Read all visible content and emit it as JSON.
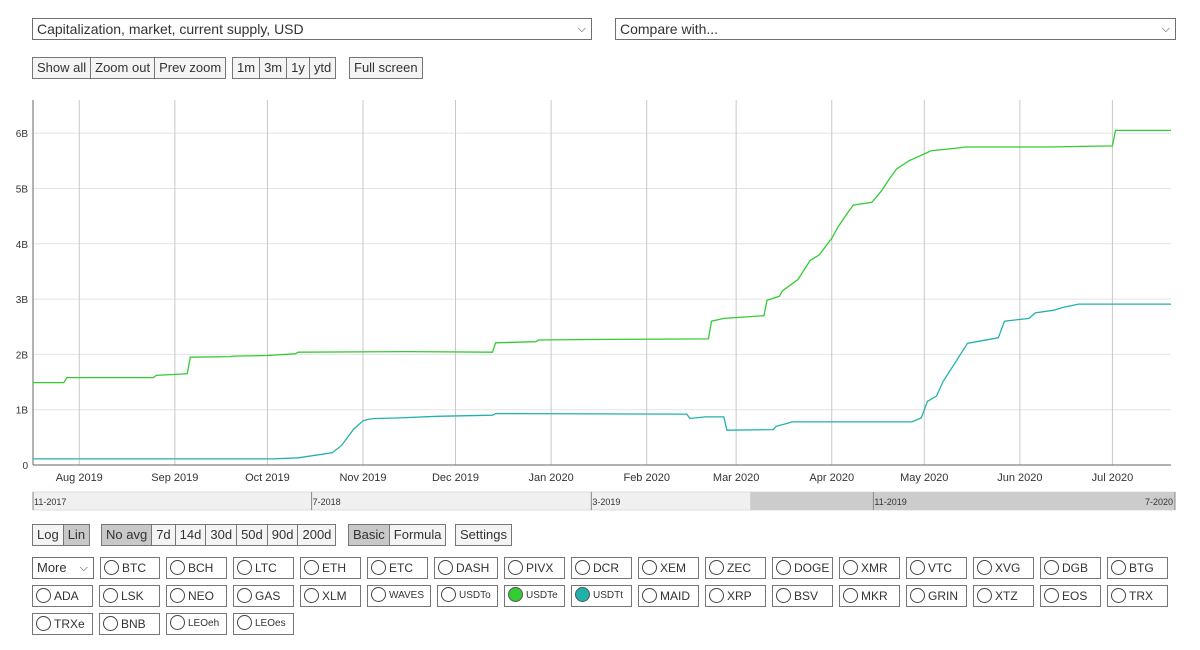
{
  "controls": {
    "metric_select": "Capitalization, market, current supply, USD",
    "compare_select": "Compare with...",
    "zoom_buttons": [
      "Show all",
      "Zoom out",
      "Prev zoom"
    ],
    "range_buttons": [
      "1m",
      "3m",
      "1y",
      "ytd"
    ],
    "fullscreen": "Full screen",
    "scale_buttons": [
      "Log",
      "Lin"
    ],
    "scale_active": "Lin",
    "avg_buttons": [
      "No avg",
      "7d",
      "14d",
      "30d",
      "50d",
      "90d",
      "200d"
    ],
    "avg_active": "No avg",
    "mode_buttons": [
      "Basic",
      "Formula"
    ],
    "mode_active": "Basic",
    "settings": "Settings",
    "more_select": "More"
  },
  "colors": {
    "usdte": "#33cc33",
    "usdtt": "#20b2aa",
    "grid": "#c8c8c8",
    "navigator_selection": "#cccccc"
  },
  "coins": [
    [
      "BTC",
      "BCH",
      "LTC",
      "ETH",
      "ETC",
      "DASH",
      "PIVX",
      "DCR",
      "XEM",
      "ZEC",
      "DOGE",
      "XMR",
      "VTC",
      "XVG",
      "DGB",
      "BTG"
    ],
    [
      "ADA",
      "LSK",
      "NEO",
      "GAS",
      "XLM",
      "WAVES",
      "USDTo",
      "USDTe",
      "USDTt",
      "MAID",
      "XRP",
      "BSV",
      "MKR",
      "GRIN",
      "XTZ",
      "EOS",
      "TRX"
    ],
    [
      "TRXe",
      "BNB",
      "LEOeh",
      "LEOes"
    ]
  ],
  "selected_coins": {
    "USDTe": "#33cc33",
    "USDTt": "#20b2aa"
  },
  "chart_data": {
    "type": "line",
    "ylabel": "",
    "y_ticks": [
      "0",
      "1B",
      "2B",
      "3B",
      "4B",
      "5B",
      "6B"
    ],
    "ylim": [
      0,
      6600000000
    ],
    "x_ticks": [
      "Aug 2019",
      "Sep 2019",
      "Oct 2019",
      "Nov 2019",
      "Dec 2019",
      "Jan 2020",
      "Feb 2020",
      "Mar 2020",
      "Apr 2020",
      "May 2020",
      "Jun 2020",
      "Jul 2020"
    ],
    "xlim": [
      "2019-07-17",
      "2020-07-20"
    ],
    "grid": true,
    "series": [
      {
        "name": "USDTe",
        "color": "#33cc33",
        "x": [
          "2019-07-17",
          "2019-07-27",
          "2019-07-28",
          "2019-08-25",
          "2019-08-26",
          "2019-09-05",
          "2019-09-06",
          "2019-09-19",
          "2019-09-20",
          "2019-10-01",
          "2019-10-10",
          "2019-10-11",
          "2019-11-15",
          "2019-12-13",
          "2019-12-14",
          "2019-12-27",
          "2019-12-28",
          "2020-01-13",
          "2020-02-21",
          "2020-02-22",
          "2020-02-26",
          "2020-03-10",
          "2020-03-11",
          "2020-03-15",
          "2020-03-16",
          "2020-03-21",
          "2020-03-25",
          "2020-03-28",
          "2020-04-01",
          "2020-04-03",
          "2020-04-06",
          "2020-04-08",
          "2020-04-14",
          "2020-04-17",
          "2020-04-20",
          "2020-04-22",
          "2020-04-26",
          "2020-05-02",
          "2020-05-03",
          "2020-05-13",
          "2020-05-14",
          "2020-06-10",
          "2020-07-01",
          "2020-07-02",
          "2020-07-20"
        ],
        "values": [
          1490000000,
          1490000000,
          1580000000,
          1580000000,
          1620000000,
          1650000000,
          1950000000,
          1960000000,
          1970000000,
          1980000000,
          2010000000,
          2040000000,
          2050000000,
          2040000000,
          2210000000,
          2230000000,
          2260000000,
          2270000000,
          2280000000,
          2600000000,
          2650000000,
          2700000000,
          2980000000,
          3050000000,
          3150000000,
          3350000000,
          3700000000,
          3800000000,
          4100000000,
          4300000000,
          4550000000,
          4700000000,
          4750000000,
          4950000000,
          5200000000,
          5350000000,
          5500000000,
          5650000000,
          5680000000,
          5740000000,
          5750000000,
          5750000000,
          5770000000,
          6050000000,
          6050000000
        ]
      },
      {
        "name": "USDTt",
        "color": "#20b2aa",
        "x": [
          "2019-07-17",
          "2019-10-03",
          "2019-10-11",
          "2019-10-22",
          "2019-10-25",
          "2019-10-29",
          "2019-11-01",
          "2019-11-03",
          "2019-11-05",
          "2019-11-12",
          "2019-11-25",
          "2019-12-13",
          "2019-12-14",
          "2020-02-14",
          "2020-02-15",
          "2020-02-20",
          "2020-02-26",
          "2020-02-27",
          "2020-03-13",
          "2020-03-14",
          "2020-03-18",
          "2020-03-19",
          "2020-04-27",
          "2020-04-30",
          "2020-05-02",
          "2020-05-05",
          "2020-05-07",
          "2020-05-15",
          "2020-05-18",
          "2020-05-25",
          "2020-05-27",
          "2020-06-04",
          "2020-06-06",
          "2020-06-12",
          "2020-06-15",
          "2020-06-20",
          "2020-07-20"
        ],
        "values": [
          110000000,
          110000000,
          130000000,
          220000000,
          350000000,
          650000000,
          800000000,
          830000000,
          840000000,
          850000000,
          880000000,
          900000000,
          930000000,
          920000000,
          840000000,
          870000000,
          870000000,
          630000000,
          640000000,
          700000000,
          760000000,
          780000000,
          780000000,
          850000000,
          1150000000,
          1250000000,
          1500000000,
          2200000000,
          2230000000,
          2300000000,
          2600000000,
          2650000000,
          2750000000,
          2800000000,
          2850000000,
          2910000000,
          2910000000
        ]
      }
    ]
  },
  "navigator": {
    "labels": [
      "11-2017",
      "7-2018",
      "3-2019",
      "11-2019",
      "7-2020"
    ],
    "range_start": "2017-11-01",
    "range_end": "2020-07-20",
    "selection_start": "2019-07-17",
    "selection_end": "2020-07-20"
  }
}
